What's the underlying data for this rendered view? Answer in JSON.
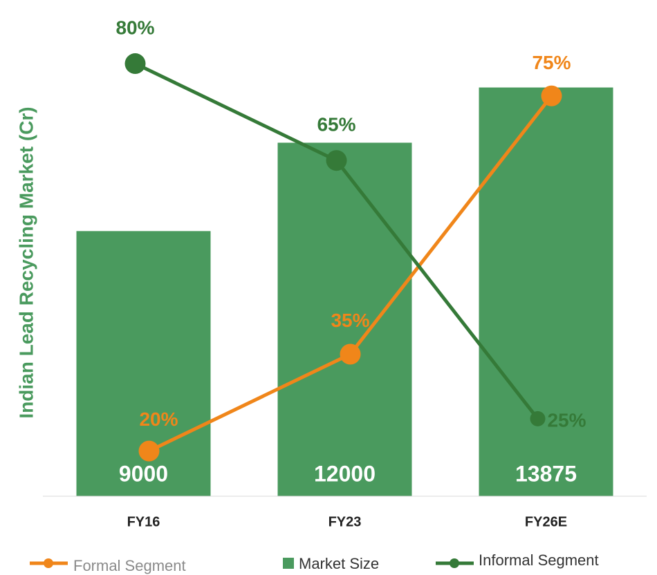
{
  "chart_data": {
    "type": "bar-line",
    "y_label": "Indian Lead Recycling Market (Cr)",
    "categories": [
      "FY16",
      "FY23",
      "FY26E"
    ],
    "ylim": [
      0,
      16000
    ],
    "y2lim": [
      13,
      86
    ],
    "bars": {
      "name": "Market Size",
      "color": "#4a9a5e",
      "values": [
        9000,
        12000,
        13875
      ]
    },
    "series": [
      {
        "name": "Formal Segment",
        "color": "#f0861a",
        "axis": "y2",
        "values": [
          20,
          35,
          75
        ],
        "value_labels": [
          "20%",
          "35%",
          "75%"
        ]
      },
      {
        "name": "Informal Segment",
        "color": "#357a38",
        "axis": "y2",
        "values": [
          80,
          65,
          25
        ],
        "value_labels": [
          "80%",
          "65%",
          "25%"
        ]
      }
    ]
  }
}
